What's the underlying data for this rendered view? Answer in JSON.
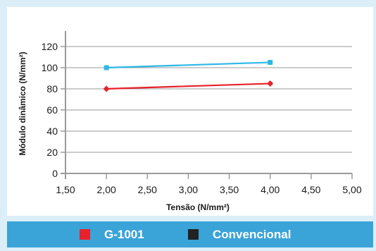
{
  "chart_data": {
    "type": "line",
    "xlabel": "Tensão (N/mm²)",
    "ylabel": "Módulo dinâmico (N/mm²)",
    "xlim": [
      1.5,
      5.0
    ],
    "ylim": [
      0,
      120
    ],
    "x_ticks": [
      "1,50",
      "2,00",
      "2,50",
      "3,00",
      "3,50",
      "4,00",
      "4,50",
      "5,00"
    ],
    "x_tick_values": [
      1.5,
      2.0,
      2.5,
      3.0,
      3.5,
      4.0,
      4.5,
      5.0
    ],
    "y_ticks": [
      "0",
      "20",
      "40",
      "60",
      "80",
      "100",
      "120"
    ],
    "y_tick_values": [
      0,
      20,
      40,
      60,
      80,
      100,
      120
    ],
    "grid": "horizontal",
    "legend_position": "bottom",
    "series": [
      {
        "name": "G-1001",
        "color": "#e8212b",
        "marker": "diamond",
        "x": [
          2.0,
          4.0
        ],
        "y": [
          80,
          85
        ]
      },
      {
        "name": "Convencional",
        "color": "#2bb8e8",
        "marker": "square",
        "x": [
          2.0,
          4.0
        ],
        "y": [
          100,
          105
        ]
      }
    ],
    "legend": [
      {
        "name": "G-1001",
        "color": "#e8212b"
      },
      {
        "name": "Convencional",
        "color": "#222222"
      }
    ]
  }
}
